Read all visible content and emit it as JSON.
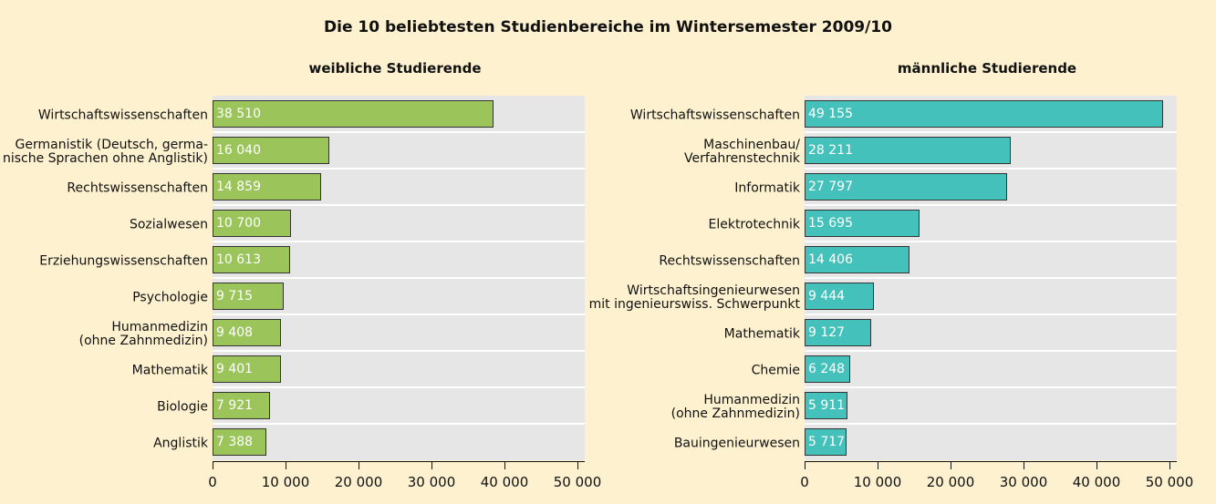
{
  "title": "Die 10 beliebtesten Studienbereiche im Wintersemester 2009/10",
  "chart_data": [
    {
      "type": "barh",
      "title": "weibliche Studierende",
      "color": "#9bc45a",
      "categories": [
        "Wirtschaftswissenschaften",
        "Germanistik (Deutsch, germa-\nnische Sprachen ohne Anglistik)",
        "Rechtswissenschaften",
        "Sozialwesen",
        "Erziehungswissenschaften",
        "Psychologie",
        "Humanmedizin\n(ohne Zahnmedizin)",
        "Mathematik",
        "Biologie",
        "Anglistik"
      ],
      "values": [
        38510,
        16040,
        14859,
        10700,
        10613,
        9715,
        9408,
        9401,
        7921,
        7388
      ],
      "value_labels": [
        "38 510",
        "16 040",
        "14 859",
        "10 700",
        "10 613",
        "9 715",
        "9 408",
        "9 401",
        "7 921",
        "7 388"
      ],
      "xlim": [
        0,
        50000
      ],
      "xticks": [
        0,
        {
          "value": 10000,
          "label": "10 000"
        },
        {
          "value": 20000,
          "label": "20 000"
        },
        {
          "value": 30000,
          "label": "30 000"
        },
        {
          "value": 40000,
          "label": "40 000"
        },
        {
          "value": 50000,
          "label": "50 000"
        }
      ],
      "grid": false
    },
    {
      "type": "barh",
      "title": "männliche Studierende",
      "color": "#45c1bb",
      "categories": [
        "Wirtschaftswissenschaften",
        "Maschinenbau/\nVerfahrenstechnik",
        "Informatik",
        "Elektrotechnik",
        "Rechtswissenschaften",
        "Wirtschaftsingenieurwesen\nmit ingenieurswiss. Schwerpunkt",
        "Mathematik",
        "Chemie",
        "Humanmedizin\n(ohne Zahnmedizin)",
        "Bauingenieurwesen"
      ],
      "values": [
        49155,
        28211,
        27797,
        15695,
        14406,
        9444,
        9127,
        6248,
        5911,
        5717
      ],
      "value_labels": [
        "49 155",
        "28 211",
        "27 797",
        "15 695",
        "14 406",
        "9 444",
        "9 127",
        "6 248",
        "5 911",
        "5 717"
      ],
      "xlim": [
        0,
        50000
      ],
      "xticks": [
        0,
        {
          "value": 10000,
          "label": "10 000"
        },
        {
          "value": 20000,
          "label": "20 000"
        },
        {
          "value": 30000,
          "label": "30 000"
        },
        {
          "value": 40000,
          "label": "40 000"
        },
        {
          "value": 50000,
          "label": "50 000"
        }
      ],
      "grid": false
    }
  ]
}
